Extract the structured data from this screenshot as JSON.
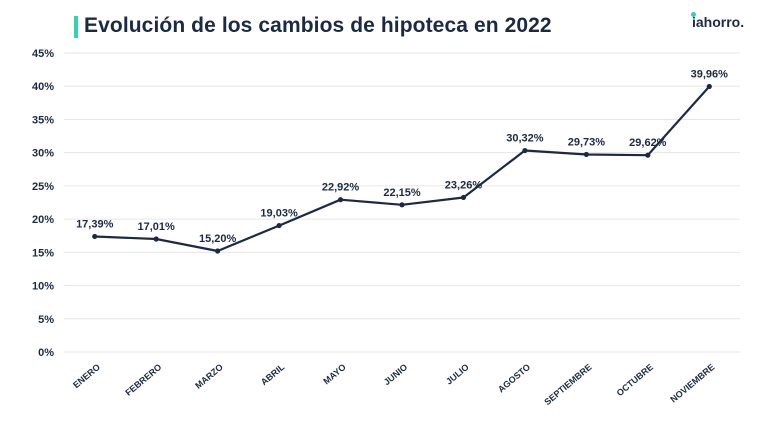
{
  "header": {
    "title": "Evolución de los cambios de hipoteca en 2022",
    "logo": "iahorro."
  },
  "colors": {
    "accent": "#2fd3b5",
    "line": "#1b2a44",
    "grid": "#e6e6e6"
  },
  "chart_data": {
    "type": "line",
    "title": "Evolución de los cambios de hipoteca en 2022",
    "categories": [
      "ENERO",
      "FEBRERO",
      "MARZO",
      "ABRIL",
      "MAYO",
      "JUNIO",
      "JULIO",
      "AGOSTO",
      "SEPTIEMBRE",
      "OCTUBRE",
      "NOVIEMBRE"
    ],
    "values": [
      17.39,
      17.01,
      15.2,
      19.03,
      22.92,
      22.15,
      23.26,
      30.32,
      29.73,
      29.62,
      39.96
    ],
    "data_labels": [
      "17,39%",
      "17,01%",
      "15,20%",
      "19,03%",
      "22,92%",
      "22,15%",
      "23,26%",
      "30,32%",
      "29,73%",
      "29,62%",
      "39,96%"
    ],
    "y_ticks": [
      "0%",
      "5%",
      "10%",
      "15%",
      "20%",
      "25%",
      "30%",
      "35%",
      "40%",
      "45%"
    ],
    "ylim": [
      0,
      45
    ],
    "y_step": 5,
    "xlabel": "",
    "ylabel": "",
    "grid": true
  }
}
